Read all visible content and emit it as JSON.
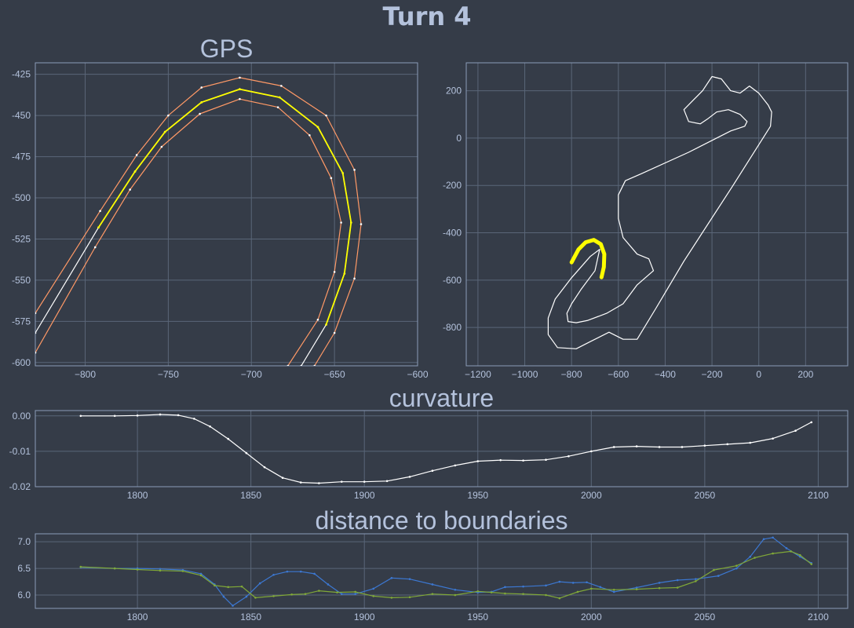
{
  "title": "Turn 4",
  "colors": {
    "background": "#353c48",
    "grid": "#5a6678",
    "frame": "#8c9cb8",
    "text": "#b4c2dc",
    "highlight": "#ffff00",
    "boundary": "#ff9966",
    "centerline": "#ffffff",
    "series_blue": "#3c78d2",
    "series_green": "#80a838"
  },
  "chart_data": [
    {
      "id": "gps",
      "type": "line",
      "title": "GPS",
      "xlim": [
        -830,
        -600
      ],
      "ylim": [
        -602,
        -418
      ],
      "xticks": [
        -800,
        -750,
        -700,
        -650,
        -600
      ],
      "yticks": [
        -425,
        -450,
        -475,
        -500,
        -525,
        -550,
        -575,
        -600
      ],
      "grid": true,
      "series": [
        {
          "role": "centerline",
          "color": "#ffffff",
          "points": [
            [
              -830,
              -582
            ],
            [
              -792,
              -518
            ],
            [
              -770,
              -484
            ],
            [
              -752,
              -460
            ],
            [
              -730,
              -442
            ],
            [
              -707,
              -434
            ],
            [
              -683,
              -439
            ],
            [
              -660,
              -457
            ],
            [
              -645,
              -485
            ],
            [
              -640,
              -515
            ],
            [
              -644,
              -546
            ],
            [
              -655,
              -577
            ],
            [
              -670,
              -602
            ]
          ]
        },
        {
          "role": "outer-boundary",
          "color": "#ff9966",
          "points": [
            [
              -830,
              -570
            ],
            [
              -791,
              -508
            ],
            [
              -769,
              -474
            ],
            [
              -750,
              -450
            ],
            [
              -730,
              -433
            ],
            [
              -707,
              -427
            ],
            [
              -682,
              -432
            ],
            [
              -655,
              -450
            ],
            [
              -638,
              -483
            ],
            [
              -634,
              -516
            ],
            [
              -638,
              -549
            ],
            [
              -650,
              -582
            ],
            [
              -662,
              -602
            ]
          ]
        },
        {
          "role": "inner-boundary",
          "color": "#ff9966",
          "points": [
            [
              -830,
              -594
            ],
            [
              -794,
              -530
            ],
            [
              -773,
              -495
            ],
            [
              -754,
              -469
            ],
            [
              -731,
              -449
            ],
            [
              -707,
              -440
            ],
            [
              -684,
              -445
            ],
            [
              -665,
              -462
            ],
            [
              -652,
              -488
            ],
            [
              -646,
              -515
            ],
            [
              -650,
              -545
            ],
            [
              -660,
              -574
            ],
            [
              -678,
              -602
            ]
          ]
        },
        {
          "role": "turn-section",
          "color": "#ffff00",
          "points": [
            [
              -792,
              -518
            ],
            [
              -770,
              -484
            ],
            [
              -752,
              -460
            ],
            [
              -730,
              -442
            ],
            [
              -707,
              -434
            ],
            [
              -683,
              -439
            ],
            [
              -660,
              -457
            ],
            [
              -645,
              -485
            ],
            [
              -640,
              -515
            ],
            [
              -644,
              -546
            ],
            [
              -655,
              -577
            ]
          ]
        }
      ]
    },
    {
      "id": "track-map",
      "type": "line",
      "title": "",
      "xlim": [
        -1250,
        380
      ],
      "ylim": [
        -962,
        318
      ],
      "xticks": [
        -1200,
        -1000,
        -800,
        -600,
        -400,
        -200,
        0,
        200
      ],
      "yticks": [
        200,
        0,
        -200,
        -400,
        -600,
        -800
      ],
      "grid": true,
      "series": [
        {
          "role": "track",
          "color": "#ffffff",
          "points": [
            [
              50,
              50
            ],
            [
              -110,
              -200
            ],
            [
              -320,
              -520
            ],
            [
              -440,
              -720
            ],
            [
              -520,
              -850
            ],
            [
              -580,
              -850
            ],
            [
              -640,
              -820
            ],
            [
              -720,
              -860
            ],
            [
              -780,
              -890
            ],
            [
              -860,
              -885
            ],
            [
              -900,
              -830
            ],
            [
              -900,
              -760
            ],
            [
              -870,
              -680
            ],
            [
              -800,
              -590
            ],
            [
              -720,
              -500
            ],
            [
              -680,
              -470
            ],
            [
              -700,
              -560
            ],
            [
              -760,
              -640
            ],
            [
              -800,
              -700
            ],
            [
              -820,
              -740
            ],
            [
              -815,
              -775
            ],
            [
              -780,
              -780
            ],
            [
              -730,
              -770
            ],
            [
              -650,
              -740
            ],
            [
              -580,
              -700
            ],
            [
              -520,
              -620
            ],
            [
              -450,
              -560
            ],
            [
              -470,
              -510
            ],
            [
              -520,
              -490
            ],
            [
              -580,
              -420
            ],
            [
              -600,
              -340
            ],
            [
              -600,
              -240
            ],
            [
              -570,
              -180
            ],
            [
              -500,
              -150
            ],
            [
              -300,
              -60
            ],
            [
              -120,
              30
            ],
            [
              -60,
              50
            ],
            [
              -50,
              70
            ],
            [
              -80,
              100
            ],
            [
              -130,
              120
            ],
            [
              -180,
              110
            ],
            [
              -220,
              80
            ],
            [
              -250,
              60
            ],
            [
              -300,
              70
            ],
            [
              -320,
              120
            ],
            [
              -280,
              160
            ],
            [
              -240,
              200
            ],
            [
              -200,
              260
            ],
            [
              -160,
              250
            ],
            [
              -120,
              200
            ],
            [
              -80,
              190
            ],
            [
              -40,
              220
            ],
            [
              0,
              190
            ],
            [
              40,
              140
            ],
            [
              55,
              110
            ],
            [
              50,
              50
            ]
          ]
        },
        {
          "role": "turn-4",
          "color": "#ffff00",
          "points": [
            [
              -800,
              -525
            ],
            [
              -770,
              -470
            ],
            [
              -740,
              -440
            ],
            [
              -705,
              -430
            ],
            [
              -675,
              -448
            ],
            [
              -660,
              -490
            ],
            [
              -662,
              -545
            ],
            [
              -672,
              -588
            ]
          ]
        }
      ]
    },
    {
      "id": "curvature",
      "type": "line",
      "title": "curvature",
      "xlim": [
        1755,
        2113
      ],
      "ylim": [
        -0.02,
        0.0015
      ],
      "xticks": [
        1800,
        1850,
        1900,
        1950,
        2000,
        2050,
        2100
      ],
      "yticks": [
        0.0,
        -0.01,
        -0.02
      ],
      "ytick_labels": [
        "0.00",
        "-0.01",
        "-0.02"
      ],
      "grid": true,
      "series": [
        {
          "color": "#ffffff",
          "points": [
            [
              1775,
              0.0
            ],
            [
              1790,
              0.0
            ],
            [
              1800,
              0.0001
            ],
            [
              1810,
              0.0004
            ],
            [
              1818,
              0.0002
            ],
            [
              1825,
              -0.0008
            ],
            [
              1832,
              -0.003
            ],
            [
              1840,
              -0.0065
            ],
            [
              1848,
              -0.0105
            ],
            [
              1856,
              -0.0145
            ],
            [
              1864,
              -0.0175
            ],
            [
              1872,
              -0.0188
            ],
            [
              1880,
              -0.019
            ],
            [
              1890,
              -0.0186
            ],
            [
              1900,
              -0.0186
            ],
            [
              1910,
              -0.0184
            ],
            [
              1920,
              -0.0172
            ],
            [
              1930,
              -0.0155
            ],
            [
              1940,
              -0.014
            ],
            [
              1950,
              -0.0128
            ],
            [
              1960,
              -0.0125
            ],
            [
              1970,
              -0.0126
            ],
            [
              1980,
              -0.0124
            ],
            [
              1990,
              -0.0114
            ],
            [
              2000,
              -0.01
            ],
            [
              2010,
              -0.0088
            ],
            [
              2020,
              -0.0086
            ],
            [
              2030,
              -0.0088
            ],
            [
              2040,
              -0.0088
            ],
            [
              2050,
              -0.0084
            ],
            [
              2060,
              -0.008
            ],
            [
              2070,
              -0.0076
            ],
            [
              2080,
              -0.0064
            ],
            [
              2090,
              -0.0042
            ],
            [
              2097,
              -0.0018
            ]
          ]
        }
      ]
    },
    {
      "id": "distance",
      "type": "line",
      "title": "distance to boundaries",
      "xlim": [
        1755,
        2113
      ],
      "ylim": [
        5.75,
        7.15
      ],
      "xticks": [
        1800,
        1850,
        1900,
        1950,
        2000,
        2050,
        2100
      ],
      "yticks": [
        7.0,
        6.5,
        6.0
      ],
      "ytick_labels": [
        "7.0",
        "6.5",
        "6.0"
      ],
      "grid": true,
      "series": [
        {
          "color": "#3c78d2",
          "points": [
            [
              1775,
              6.52
            ],
            [
              1790,
              6.5
            ],
            [
              1800,
              6.5
            ],
            [
              1810,
              6.49
            ],
            [
              1820,
              6.47
            ],
            [
              1828,
              6.4
            ],
            [
              1834,
              6.2
            ],
            [
              1838,
              5.97
            ],
            [
              1842,
              5.8
            ],
            [
              1848,
              5.97
            ],
            [
              1854,
              6.22
            ],
            [
              1860,
              6.38
            ],
            [
              1866,
              6.44
            ],
            [
              1872,
              6.44
            ],
            [
              1878,
              6.4
            ],
            [
              1884,
              6.2
            ],
            [
              1890,
              6.02
            ],
            [
              1896,
              6.02
            ],
            [
              1904,
              6.12
            ],
            [
              1912,
              6.32
            ],
            [
              1920,
              6.3
            ],
            [
              1930,
              6.2
            ],
            [
              1940,
              6.1
            ],
            [
              1950,
              6.05
            ],
            [
              1956,
              6.06
            ],
            [
              1962,
              6.15
            ],
            [
              1970,
              6.16
            ],
            [
              1980,
              6.18
            ],
            [
              1986,
              6.25
            ],
            [
              1992,
              6.23
            ],
            [
              1998,
              6.24
            ],
            [
              2004,
              6.15
            ],
            [
              2010,
              6.06
            ],
            [
              2020,
              6.14
            ],
            [
              2030,
              6.23
            ],
            [
              2038,
              6.28
            ],
            [
              2046,
              6.3
            ],
            [
              2056,
              6.36
            ],
            [
              2064,
              6.5
            ],
            [
              2070,
              6.72
            ],
            [
              2076,
              7.05
            ],
            [
              2080,
              7.08
            ],
            [
              2086,
              6.88
            ],
            [
              2092,
              6.72
            ],
            [
              2097,
              6.6
            ]
          ]
        },
        {
          "color": "#80a838",
          "points": [
            [
              1775,
              6.53
            ],
            [
              1790,
              6.5
            ],
            [
              1800,
              6.48
            ],
            [
              1810,
              6.46
            ],
            [
              1820,
              6.45
            ],
            [
              1828,
              6.37
            ],
            [
              1834,
              6.18
            ],
            [
              1840,
              6.15
            ],
            [
              1846,
              6.16
            ],
            [
              1852,
              5.95
            ],
            [
              1860,
              5.98
            ],
            [
              1868,
              6.01
            ],
            [
              1874,
              6.02
            ],
            [
              1880,
              6.08
            ],
            [
              1888,
              6.05
            ],
            [
              1896,
              6.06
            ],
            [
              1904,
              5.98
            ],
            [
              1912,
              5.95
            ],
            [
              1920,
              5.96
            ],
            [
              1930,
              6.02
            ],
            [
              1940,
              6.0
            ],
            [
              1950,
              6.07
            ],
            [
              1956,
              6.05
            ],
            [
              1962,
              6.03
            ],
            [
              1970,
              6.02
            ],
            [
              1980,
              6.0
            ],
            [
              1986,
              5.94
            ],
            [
              1994,
              6.06
            ],
            [
              2000,
              6.12
            ],
            [
              2010,
              6.1
            ],
            [
              2020,
              6.11
            ],
            [
              2030,
              6.13
            ],
            [
              2038,
              6.14
            ],
            [
              2046,
              6.26
            ],
            [
              2054,
              6.47
            ],
            [
              2064,
              6.55
            ],
            [
              2072,
              6.7
            ],
            [
              2080,
              6.78
            ],
            [
              2088,
              6.82
            ],
            [
              2092,
              6.75
            ],
            [
              2097,
              6.58
            ]
          ]
        }
      ]
    }
  ]
}
